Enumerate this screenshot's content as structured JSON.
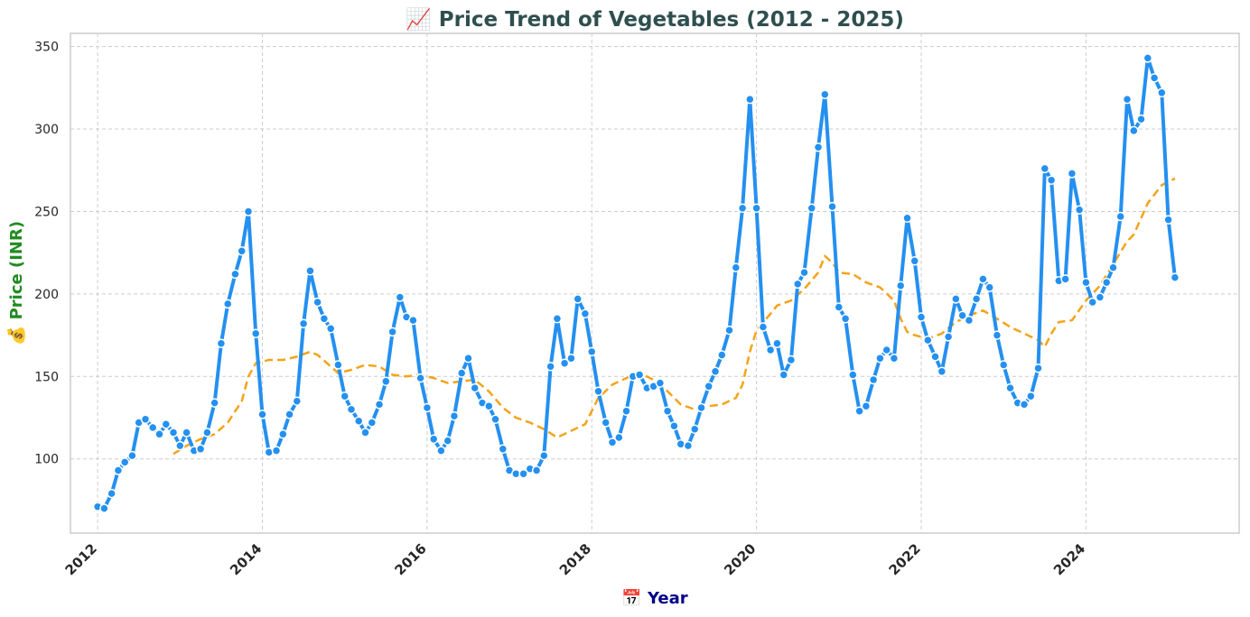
{
  "chart_data": {
    "type": "line",
    "title": "📈 Price Trend of Vegetables (2012 - 2025)",
    "xlabel": "📅 Year",
    "ylabel": "💰 Price (INR)",
    "x_ticks": [
      "2012",
      "2014",
      "2016",
      "2018",
      "2020",
      "2022",
      "2024"
    ],
    "y_ticks": [
      100,
      150,
      200,
      250,
      300,
      350
    ],
    "xlim": [
      2011.67,
      2025.86
    ],
    "ylim": [
      55,
      358
    ],
    "grid": true,
    "colors": {
      "price_line": "#2490f0",
      "rolling_line": "#f5a31a",
      "title": "#2f4f4f",
      "ylabel": "#228b22",
      "xlabel": "#00008b",
      "grid": "#cccccc",
      "frame": "#cccccc"
    },
    "series": [
      {
        "style": "solid-markers",
        "points": [
          [
            2012.0,
            71
          ],
          [
            2012.08,
            70
          ],
          [
            2012.17,
            79
          ],
          [
            2012.25,
            93
          ],
          [
            2012.33,
            98
          ],
          [
            2012.42,
            102
          ],
          [
            2012.5,
            122
          ],
          [
            2012.58,
            124
          ],
          [
            2012.67,
            119
          ],
          [
            2012.75,
            115
          ],
          [
            2012.83,
            121
          ],
          [
            2012.92,
            116
          ],
          [
            2013.0,
            108
          ],
          [
            2013.08,
            116
          ],
          [
            2013.17,
            105
          ],
          [
            2013.25,
            106
          ],
          [
            2013.33,
            116
          ],
          [
            2013.42,
            134
          ],
          [
            2013.5,
            170
          ],
          [
            2013.58,
            194
          ],
          [
            2013.67,
            212
          ],
          [
            2013.75,
            226
          ],
          [
            2013.83,
            250
          ],
          [
            2013.92,
            176
          ],
          [
            2014.0,
            127
          ],
          [
            2014.08,
            104
          ],
          [
            2014.17,
            105
          ],
          [
            2014.25,
            115
          ],
          [
            2014.33,
            127
          ],
          [
            2014.42,
            135
          ],
          [
            2014.5,
            182
          ],
          [
            2014.58,
            214
          ],
          [
            2014.67,
            195
          ],
          [
            2014.75,
            185
          ],
          [
            2014.83,
            179
          ],
          [
            2014.92,
            157
          ],
          [
            2015.0,
            138
          ],
          [
            2015.08,
            130
          ],
          [
            2015.17,
            123
          ],
          [
            2015.25,
            116
          ],
          [
            2015.33,
            122
          ],
          [
            2015.42,
            133
          ],
          [
            2015.5,
            147
          ],
          [
            2015.58,
            177
          ],
          [
            2015.67,
            198
          ],
          [
            2015.75,
            186
          ],
          [
            2015.83,
            184
          ],
          [
            2015.92,
            149
          ],
          [
            2016.0,
            131
          ],
          [
            2016.08,
            112
          ],
          [
            2016.17,
            105
          ],
          [
            2016.25,
            111
          ],
          [
            2016.33,
            126
          ],
          [
            2016.42,
            152
          ],
          [
            2016.5,
            161
          ],
          [
            2016.58,
            143
          ],
          [
            2016.67,
            134
          ],
          [
            2016.75,
            132
          ],
          [
            2016.83,
            124
          ],
          [
            2016.92,
            106
          ],
          [
            2017.0,
            93
          ],
          [
            2017.08,
            91
          ],
          [
            2017.17,
            91
          ],
          [
            2017.25,
            94
          ],
          [
            2017.33,
            93
          ],
          [
            2017.42,
            102
          ],
          [
            2017.5,
            156
          ],
          [
            2017.58,
            185
          ],
          [
            2017.67,
            158
          ],
          [
            2017.75,
            161
          ],
          [
            2017.83,
            197
          ],
          [
            2017.92,
            188
          ],
          [
            2018.0,
            165
          ],
          [
            2018.08,
            141
          ],
          [
            2018.17,
            122
          ],
          [
            2018.25,
            110
          ],
          [
            2018.33,
            113
          ],
          [
            2018.42,
            129
          ],
          [
            2018.5,
            150
          ],
          [
            2018.58,
            151
          ],
          [
            2018.67,
            143
          ],
          [
            2018.75,
            144
          ],
          [
            2018.83,
            146
          ],
          [
            2018.92,
            129
          ],
          [
            2019.0,
            120
          ],
          [
            2019.08,
            109
          ],
          [
            2019.17,
            108
          ],
          [
            2019.25,
            118
          ],
          [
            2019.33,
            131
          ],
          [
            2019.42,
            144
          ],
          [
            2019.5,
            153
          ],
          [
            2019.58,
            163
          ],
          [
            2019.67,
            178
          ],
          [
            2019.75,
            216
          ],
          [
            2019.83,
            252
          ],
          [
            2019.92,
            318
          ],
          [
            2020.0,
            252
          ],
          [
            2020.08,
            180
          ],
          [
            2020.17,
            166
          ],
          [
            2020.25,
            170
          ],
          [
            2020.33,
            151
          ],
          [
            2020.42,
            160
          ],
          [
            2020.5,
            206
          ],
          [
            2020.58,
            213
          ],
          [
            2020.67,
            252
          ],
          [
            2020.75,
            289
          ],
          [
            2020.83,
            321
          ],
          [
            2020.92,
            253
          ],
          [
            2021.0,
            192
          ],
          [
            2021.08,
            185
          ],
          [
            2021.17,
            151
          ],
          [
            2021.25,
            129
          ],
          [
            2021.33,
            132
          ],
          [
            2021.42,
            148
          ],
          [
            2021.5,
            161
          ],
          [
            2021.58,
            166
          ],
          [
            2021.67,
            161
          ],
          [
            2021.75,
            205
          ],
          [
            2021.83,
            246
          ],
          [
            2021.92,
            220
          ],
          [
            2022.0,
            186
          ],
          [
            2022.08,
            172
          ],
          [
            2022.17,
            162
          ],
          [
            2022.25,
            153
          ],
          [
            2022.33,
            174
          ],
          [
            2022.42,
            197
          ],
          [
            2022.5,
            187
          ],
          [
            2022.58,
            184
          ],
          [
            2022.67,
            197
          ],
          [
            2022.75,
            209
          ],
          [
            2022.83,
            204
          ],
          [
            2022.92,
            175
          ],
          [
            2023.0,
            157
          ],
          [
            2023.08,
            143
          ],
          [
            2023.17,
            134
          ],
          [
            2023.25,
            133
          ],
          [
            2023.33,
            138
          ],
          [
            2023.42,
            155
          ],
          [
            2023.5,
            276
          ],
          [
            2023.58,
            269
          ],
          [
            2023.67,
            208
          ],
          [
            2023.75,
            209
          ],
          [
            2023.83,
            273
          ],
          [
            2023.92,
            251
          ],
          [
            2024.0,
            207
          ],
          [
            2024.08,
            195
          ],
          [
            2024.17,
            198
          ],
          [
            2024.25,
            207
          ],
          [
            2024.33,
            216
          ],
          [
            2024.42,
            247
          ],
          [
            2024.5,
            318
          ],
          [
            2024.58,
            299
          ],
          [
            2024.67,
            306
          ],
          [
            2024.75,
            343
          ],
          [
            2024.83,
            331
          ],
          [
            2024.92,
            322
          ],
          [
            2025.0,
            245
          ],
          [
            2025.08,
            210
          ]
        ]
      },
      {
        "style": "dashed",
        "points": [
          [
            2012.92,
            103
          ],
          [
            2013.08,
            108
          ],
          [
            2013.25,
            112
          ],
          [
            2013.42,
            115
          ],
          [
            2013.58,
            122
          ],
          [
            2013.75,
            135
          ],
          [
            2013.83,
            150
          ],
          [
            2013.92,
            158
          ],
          [
            2014.08,
            160
          ],
          [
            2014.25,
            160
          ],
          [
            2014.42,
            162
          ],
          [
            2014.58,
            165
          ],
          [
            2014.67,
            163
          ],
          [
            2014.83,
            156
          ],
          [
            2014.92,
            152
          ],
          [
            2015.08,
            154
          ],
          [
            2015.25,
            157
          ],
          [
            2015.42,
            156
          ],
          [
            2015.58,
            151
          ],
          [
            2015.75,
            150
          ],
          [
            2015.92,
            151
          ],
          [
            2016.08,
            149
          ],
          [
            2016.25,
            146
          ],
          [
            2016.42,
            147
          ],
          [
            2016.58,
            148
          ],
          [
            2016.75,
            141
          ],
          [
            2016.92,
            131
          ],
          [
            2017.08,
            125
          ],
          [
            2017.25,
            122
          ],
          [
            2017.42,
            118
          ],
          [
            2017.58,
            113
          ],
          [
            2017.75,
            117
          ],
          [
            2017.92,
            121
          ],
          [
            2018.0,
            129
          ],
          [
            2018.08,
            137
          ],
          [
            2018.25,
            145
          ],
          [
            2018.42,
            149
          ],
          [
            2018.58,
            152
          ],
          [
            2018.75,
            148
          ],
          [
            2018.92,
            141
          ],
          [
            2019.08,
            133
          ],
          [
            2019.25,
            130
          ],
          [
            2019.42,
            132
          ],
          [
            2019.58,
            133
          ],
          [
            2019.75,
            137
          ],
          [
            2019.83,
            145
          ],
          [
            2019.92,
            165
          ],
          [
            2020.0,
            178
          ],
          [
            2020.17,
            188
          ],
          [
            2020.25,
            193
          ],
          [
            2020.42,
            196
          ],
          [
            2020.58,
            203
          ],
          [
            2020.75,
            213
          ],
          [
            2020.83,
            223
          ],
          [
            2020.92,
            219
          ],
          [
            2021.0,
            213
          ],
          [
            2021.17,
            212
          ],
          [
            2021.33,
            207
          ],
          [
            2021.5,
            204
          ],
          [
            2021.67,
            196
          ],
          [
            2021.75,
            185
          ],
          [
            2021.83,
            177
          ],
          [
            2021.92,
            175
          ],
          [
            2022.08,
            173
          ],
          [
            2022.25,
            176
          ],
          [
            2022.42,
            183
          ],
          [
            2022.58,
            187
          ],
          [
            2022.75,
            190
          ],
          [
            2022.92,
            185
          ],
          [
            2023.08,
            180
          ],
          [
            2023.25,
            176
          ],
          [
            2023.42,
            172
          ],
          [
            2023.5,
            168
          ],
          [
            2023.58,
            176
          ],
          [
            2023.67,
            183
          ],
          [
            2023.83,
            184
          ],
          [
            2024.0,
            196
          ],
          [
            2024.17,
            205
          ],
          [
            2024.33,
            218
          ],
          [
            2024.5,
            232
          ],
          [
            2024.58,
            236
          ],
          [
            2024.75,
            255
          ],
          [
            2024.92,
            266
          ],
          [
            2025.08,
            270
          ]
        ]
      }
    ]
  }
}
